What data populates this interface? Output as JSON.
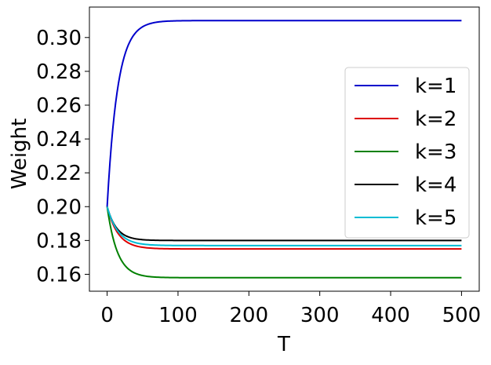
{
  "chart_data": {
    "type": "line",
    "title": "",
    "xlabel": "T",
    "ylabel": "Weight",
    "xlim": [
      -25,
      525
    ],
    "ylim": [
      0.15,
      0.318
    ],
    "xticks": [
      0,
      100,
      200,
      300,
      400,
      500
    ],
    "yticks": [
      0.16,
      0.18,
      0.2,
      0.22,
      0.24,
      0.26,
      0.28,
      0.3
    ],
    "xtick_labels": [
      "0",
      "100",
      "200",
      "300",
      "400",
      "500"
    ],
    "ytick_labels": [
      "0.16",
      "0.18",
      "0.20",
      "0.22",
      "0.24",
      "0.26",
      "0.28",
      "0.30"
    ],
    "grid": false,
    "legend_position": "right",
    "series": [
      {
        "name": "k=1",
        "color": "#0000cc",
        "start": 0.2,
        "final": 0.31,
        "rate": 0.068
      },
      {
        "name": "k=2",
        "color": "#dd0000",
        "start": 0.2,
        "final": 0.175,
        "rate": 0.065
      },
      {
        "name": "k=3",
        "color": "#008000",
        "start": 0.2,
        "final": 0.158,
        "rate": 0.07
      },
      {
        "name": "k=4",
        "color": "#000000",
        "start": 0.2,
        "final": 0.18,
        "rate": 0.075
      },
      {
        "name": "k=5",
        "color": "#00bcd4",
        "start": 0.2,
        "final": 0.177,
        "rate": 0.065
      }
    ],
    "x_range": [
      0,
      500
    ]
  }
}
